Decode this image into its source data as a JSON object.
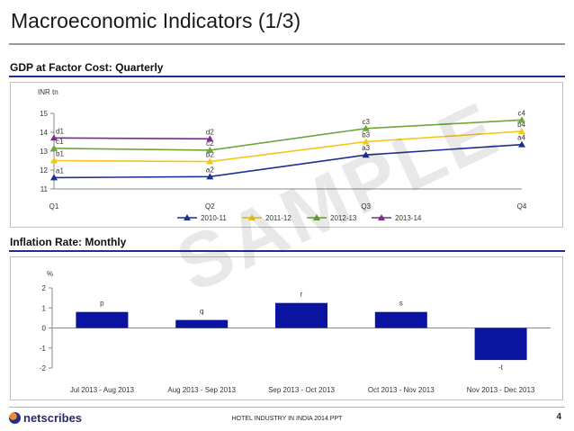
{
  "slide": {
    "title": "Macroeconomic Indicators (1/3)",
    "footer": "HOTEL INDUSTRY IN INDIA 2014.PPT",
    "page_number": "4",
    "logo_text": "netscribes",
    "watermark": "SAMPLE"
  },
  "colors": {
    "title_rule": "#9a9a9a",
    "section_rule": "#1f2f8f",
    "bar": "#0a14a0",
    "series_2010_11": "#1f2f8f",
    "series_2011_12": "#f5c518",
    "series_2012_13": "#6aa83a",
    "series_2013_14": "#7a2b8c"
  },
  "chart_data": [
    {
      "type": "line",
      "section_label": "GDP at Factor Cost: Quarterly",
      "ylabel": "INR tn",
      "categories": [
        "Q1",
        "Q2",
        "Q3",
        "Q4"
      ],
      "ylim": [
        11,
        15
      ],
      "yticks": [
        "11",
        "12",
        "13",
        "14",
        "15"
      ],
      "grid": false,
      "legend": "bottom",
      "series": [
        {
          "name": "2010-11",
          "color": "#1f2f8f",
          "marker": "triangle",
          "values": [
            11.6,
            11.65,
            12.8,
            13.35
          ],
          "labels": [
            "a1",
            "a2",
            "a3",
            "a4"
          ]
        },
        {
          "name": "2011-12",
          "color": "#f5c518",
          "marker": "triangle",
          "values": [
            12.5,
            12.45,
            13.5,
            14.05
          ],
          "labels": [
            "b1",
            "b2",
            "b3",
            "b4"
          ]
        },
        {
          "name": "2012-13",
          "color": "#6aa83a",
          "marker": "triangle",
          "values": [
            13.15,
            13.05,
            14.2,
            14.65
          ],
          "labels": [
            "c1",
            "c2",
            "c3",
            "c4"
          ]
        },
        {
          "name": "2013-14",
          "color": "#7a2b8c",
          "marker": "triangle",
          "values": [
            13.7,
            13.65,
            null,
            null
          ],
          "labels": [
            "d1",
            "d2",
            "",
            ""
          ]
        }
      ]
    },
    {
      "type": "bar",
      "section_label": "Inflation Rate: Monthly",
      "ylabel": "%",
      "categories": [
        "Jul 2013 - Aug 2013",
        "Aug 2013 - Sep 2013",
        "Sep 2013 - Oct 2013",
        "Oct 2013 - Nov 2013",
        "Nov 2013 -  Dec 2013"
      ],
      "values": [
        0.8,
        0.4,
        1.25,
        0.8,
        -1.6
      ],
      "data_labels": [
        "p",
        "q",
        "r",
        "s",
        "-t"
      ],
      "ylim": [
        -2,
        2
      ],
      "yticks": [
        "-2",
        "-1",
        "0",
        "1",
        "2"
      ],
      "grid": false,
      "legend": "none",
      "bar_color": "#0a14a0"
    }
  ]
}
